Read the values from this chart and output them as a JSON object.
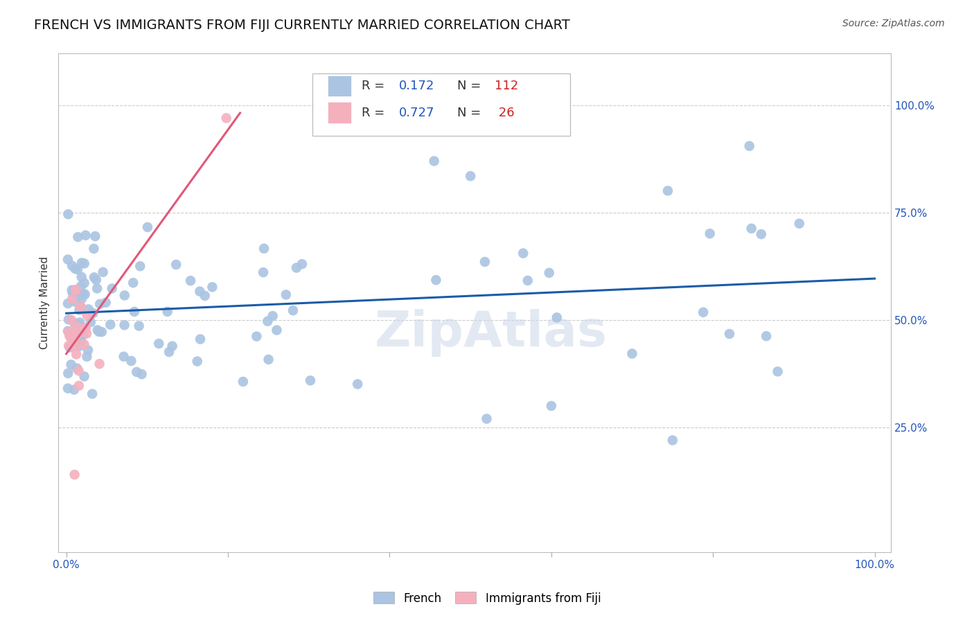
{
  "title": "FRENCH VS IMMIGRANTS FROM FIJI CURRENTLY MARRIED CORRELATION CHART",
  "source": "Source: ZipAtlas.com",
  "ylabel": "Currently Married",
  "watermark": "ZipAtlas",
  "french_R": 0.172,
  "french_N": 112,
  "fiji_R": 0.727,
  "fiji_N": 26,
  "blue_color": "#aac4e2",
  "pink_color": "#f5b0be",
  "blue_line_color": "#1a5ca8",
  "pink_line_color": "#e05878",
  "legend_R_color": "#2255bb",
  "legend_N_color": "#cc2222",
  "background_color": "#ffffff",
  "grid_color": "#cccccc",
  "title_fontsize": 14,
  "label_fontsize": 11,
  "tick_fontsize": 11,
  "legend_fontsize": 13
}
